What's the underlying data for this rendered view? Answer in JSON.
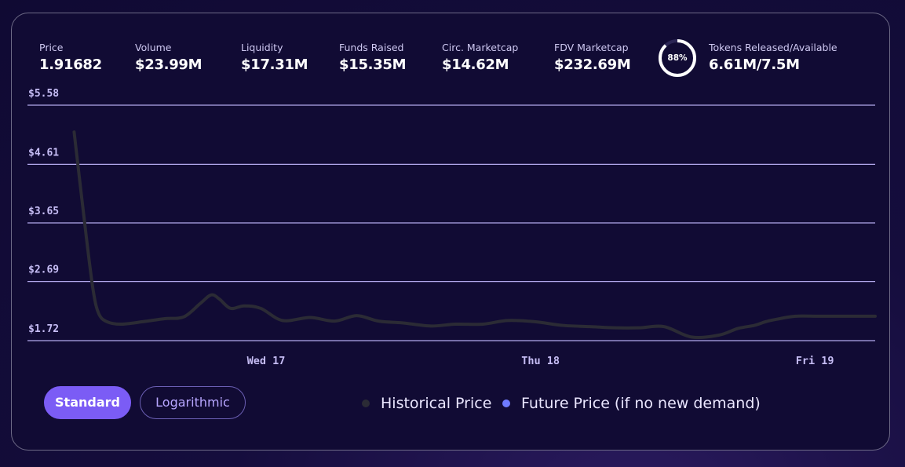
{
  "stats": {
    "price": {
      "label": "Price",
      "value": "1.91682"
    },
    "volume": {
      "label": "Volume",
      "value": "$23.99M"
    },
    "liquidity": {
      "label": "Liquidity",
      "value": "$17.31M"
    },
    "funds": {
      "label": "Funds Raised",
      "value": "$15.35M"
    },
    "circ": {
      "label": "Circ. Marketcap",
      "value": "$14.62M"
    },
    "fdv": {
      "label": "FDV Marketcap",
      "value": "$232.69M"
    },
    "tokens": {
      "label": "Tokens Released/Available",
      "value": "6.61M/7.5M",
      "percent_label": "88%",
      "percent": 0.88
    }
  },
  "buttons": {
    "standard": "Standard",
    "logarithmic": "Logarithmic"
  },
  "legend": {
    "historical": "Historical Price",
    "future": "Future Price (if no new demand)",
    "historical_color": "#2b2b35",
    "future_color": "#6f7bff"
  },
  "chart_data": {
    "type": "line",
    "y_ticks": [
      5.58,
      4.61,
      3.65,
      2.69,
      1.72
    ],
    "y_tick_labels": [
      "$5.58",
      "$4.61",
      "$3.65",
      "$2.69",
      "$1.72"
    ],
    "ylim": [
      1.72,
      5.58
    ],
    "x_ticks": [
      {
        "label": "Wed 17",
        "x": 17
      },
      {
        "label": "Thu 18",
        "x": 18
      },
      {
        "label": "Fri 19",
        "x": 19
      }
    ],
    "xlim": [
      16.13,
      19.22
    ],
    "grid": true,
    "series": [
      {
        "name": "Historical Price",
        "color": "#2b2b35",
        "x": [
          16.3,
          16.345,
          16.37,
          16.39,
          16.42,
          16.47,
          16.55,
          16.63,
          16.7,
          16.76,
          16.8,
          16.83,
          16.87,
          16.92,
          16.98,
          17.06,
          17.16,
          17.25,
          17.33,
          17.41,
          17.5,
          17.6,
          17.69,
          17.79,
          17.88,
          17.98,
          18.08,
          18.18,
          18.27,
          18.36,
          18.45,
          18.55,
          18.65,
          18.72,
          18.78,
          18.82,
          18.86,
          18.93,
          19.01,
          19.08,
          19.22
        ],
        "y": [
          5.14,
          3.4,
          2.53,
          2.16,
          2.03,
          1.99,
          2.03,
          2.08,
          2.11,
          2.33,
          2.47,
          2.4,
          2.25,
          2.29,
          2.25,
          2.05,
          2.1,
          2.04,
          2.13,
          2.04,
          2.01,
          1.96,
          1.99,
          1.99,
          2.05,
          2.03,
          1.97,
          1.95,
          1.93,
          1.93,
          1.95,
          1.78,
          1.81,
          1.92,
          1.97,
          2.03,
          2.07,
          2.12,
          2.12,
          2.12,
          2.12
        ]
      }
    ]
  }
}
